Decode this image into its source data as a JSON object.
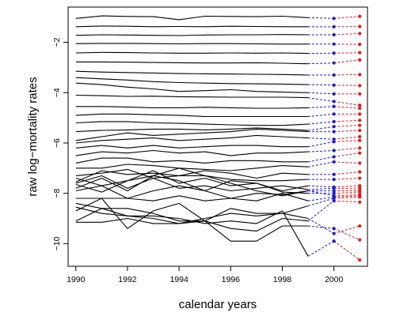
{
  "chart_data": {
    "type": "line",
    "title": "",
    "xlabel": "calendar years",
    "ylabel": "raw log−mortality rates",
    "xlim": [
      1989.7,
      2001.3
    ],
    "ylim": [
      -10.9,
      -0.6
    ],
    "xticks": [
      1990,
      1992,
      1994,
      1996,
      1998,
      2000
    ],
    "xtick_labels": [
      "1990",
      "1992",
      "1994",
      "1996",
      "1998",
      "2000"
    ],
    "yticks": [
      -2,
      -4,
      -6,
      -8,
      -10
    ],
    "ytick_labels": [
      "−2",
      "−4",
      "−6",
      "−8",
      "−10"
    ],
    "grid": false,
    "legend": "none",
    "colors": {
      "observed": "#000000",
      "forecast_2000": "#1f1fd6",
      "forecast_2001": "#e01b1b"
    },
    "x": [
      1990,
      1991,
      1992,
      1993,
      1994,
      1995,
      1996,
      1997,
      1998,
      1999
    ],
    "forecast_x": [
      2000,
      2001
    ],
    "series": [
      {
        "values": [
          -1.05,
          -0.95,
          -0.97,
          -0.98,
          -1.1,
          -0.96,
          -0.97,
          -0.98,
          -0.96,
          -1.02
        ],
        "forecast": [
          -1.05,
          -0.97
        ]
      },
      {
        "values": [
          -1.38,
          -1.35,
          -1.36,
          -1.38,
          -1.37,
          -1.38,
          -1.36,
          -1.37,
          -1.38,
          -1.38
        ],
        "forecast": [
          -1.38,
          -1.37
        ]
      },
      {
        "values": [
          -1.72,
          -1.7,
          -1.71,
          -1.72,
          -1.73,
          -1.71,
          -1.7,
          -1.7,
          -1.69,
          -1.7
        ],
        "forecast": [
          -1.7,
          -1.65
        ]
      },
      {
        "values": [
          -2.05,
          -2.04,
          -2.04,
          -2.05,
          -2.06,
          -2.05,
          -2.05,
          -2.06,
          -2.07,
          -2.07
        ],
        "forecast": [
          -2.07,
          -2.08
        ]
      },
      {
        "values": [
          -2.42,
          -2.4,
          -2.41,
          -2.42,
          -2.43,
          -2.43,
          -2.42,
          -2.43,
          -2.42,
          -2.44
        ],
        "forecast": [
          -2.43,
          -2.41
        ]
      },
      {
        "values": [
          -2.78,
          -2.78,
          -2.79,
          -2.8,
          -2.81,
          -2.82,
          -2.82,
          -2.81,
          -2.83,
          -2.85
        ],
        "forecast": [
          -2.82,
          -2.7
        ]
      },
      {
        "values": [
          -3.15,
          -3.18,
          -3.2,
          -3.22,
          -3.24,
          -3.25,
          -3.26,
          -3.27,
          -3.28,
          -3.3
        ],
        "forecast": [
          -3.3,
          -3.28
        ]
      },
      {
        "values": [
          -3.4,
          -3.45,
          -3.5,
          -3.56,
          -3.6,
          -3.62,
          -3.64,
          -3.65,
          -3.66,
          -3.68
        ],
        "forecast": [
          -3.7,
          -3.72
        ]
      },
      {
        "values": [
          -3.62,
          -3.68,
          -3.78,
          -3.85,
          -3.95,
          -3.92,
          -3.88,
          -3.95,
          -3.98,
          -4.0
        ],
        "forecast": [
          -4.05,
          -4.05
        ]
      },
      {
        "values": [
          -4.1,
          -4.12,
          -4.15,
          -4.14,
          -4.16,
          -4.17,
          -4.18,
          -4.18,
          -4.18,
          -4.2
        ],
        "forecast": [
          -4.35,
          -4.5
        ]
      },
      {
        "values": [
          -4.55,
          -4.55,
          -4.57,
          -4.6,
          -4.6,
          -4.58,
          -4.6,
          -4.62,
          -4.62,
          -4.6
        ],
        "forecast": [
          -4.55,
          -4.62
        ]
      },
      {
        "values": [
          -4.9,
          -4.85,
          -4.85,
          -4.88,
          -4.9,
          -4.95,
          -4.95,
          -4.95,
          -4.95,
          -4.95
        ],
        "forecast": [
          -4.85,
          -4.85
        ]
      },
      {
        "values": [
          -5.2,
          -5.15,
          -5.15,
          -5.2,
          -5.22,
          -5.25,
          -5.28,
          -5.3,
          -5.3,
          -5.25
        ],
        "forecast": [
          -5.15,
          -5.1
        ]
      },
      {
        "values": [
          -5.55,
          -5.5,
          -5.48,
          -5.45,
          -5.45,
          -5.48,
          -5.45,
          -5.4,
          -5.45,
          -5.5
        ],
        "forecast": [
          -5.35,
          -5.3
        ]
      },
      {
        "values": [
          -5.9,
          -5.75,
          -5.6,
          -5.7,
          -5.65,
          -5.6,
          -5.55,
          -5.45,
          -5.5,
          -5.55
        ],
        "forecast": [
          -5.55,
          -5.5
        ]
      },
      {
        "values": [
          -6.0,
          -5.9,
          -5.85,
          -5.8,
          -5.9,
          -5.85,
          -5.8,
          -5.7,
          -5.75,
          -5.8
        ],
        "forecast": [
          -5.85,
          -5.75
        ]
      },
      {
        "values": [
          -6.2,
          -6.1,
          -6.2,
          -6.1,
          -6.2,
          -6.15,
          -6.1,
          -6.1,
          -6.15,
          -6.15
        ],
        "forecast": [
          -5.95,
          -5.9
        ]
      },
      {
        "values": [
          -6.5,
          -6.35,
          -6.4,
          -6.3,
          -6.4,
          -6.35,
          -6.5,
          -6.4,
          -6.4,
          -6.35
        ],
        "forecast": [
          -6.3,
          -6.2
        ]
      },
      {
        "values": [
          -6.8,
          -6.6,
          -6.6,
          -6.75,
          -6.7,
          -6.8,
          -6.7,
          -6.7,
          -6.75,
          -6.75
        ],
        "forecast": [
          -6.55,
          -6.4
        ]
      },
      {
        "values": [
          -7.0,
          -7.0,
          -6.85,
          -6.9,
          -7.0,
          -7.05,
          -7.1,
          -7.0,
          -6.9,
          -6.95
        ],
        "forecast": [
          -6.75,
          -6.8
        ]
      },
      {
        "values": [
          -7.3,
          -7.2,
          -7.05,
          -7.4,
          -7.3,
          -7.1,
          -7.2,
          -7.4,
          -7.2,
          -7.25
        ],
        "forecast": [
          -7.25,
          -7.15
        ]
      },
      {
        "values": [
          -7.55,
          -7.1,
          -7.25,
          -7.2,
          -7.3,
          -7.3,
          -7.45,
          -7.5,
          -7.5,
          -7.45
        ],
        "forecast": [
          -7.45,
          -7.4
        ]
      },
      {
        "values": [
          -7.4,
          -7.7,
          -7.5,
          -7.1,
          -7.6,
          -7.4,
          -7.7,
          -7.6,
          -7.9,
          -7.7
        ],
        "forecast": [
          -7.75,
          -7.7
        ]
      },
      {
        "values": [
          -7.6,
          -7.3,
          -7.8,
          -7.4,
          -7.8,
          -7.7,
          -7.9,
          -7.8,
          -7.7,
          -7.85
        ],
        "forecast": [
          -7.8,
          -7.8
        ]
      },
      {
        "values": [
          -7.8,
          -7.4,
          -7.9,
          -7.3,
          -7.0,
          -7.3,
          -7.6,
          -7.9,
          -8.1,
          -7.9
        ],
        "forecast": [
          -7.9,
          -7.9
        ]
      },
      {
        "values": [
          -7.65,
          -7.95,
          -7.5,
          -7.3,
          -7.5,
          -7.9,
          -7.5,
          -7.6,
          -7.95,
          -8.0
        ],
        "forecast": [
          -8.0,
          -7.95
        ]
      },
      {
        "values": [
          -7.9,
          -7.7,
          -8.2,
          -7.9,
          -7.7,
          -7.9,
          -8.2,
          -8.0,
          -8.05,
          -7.9
        ],
        "forecast": [
          -8.1,
          -8.05
        ]
      },
      {
        "values": [
          -8.2,
          -8.2,
          -8.2,
          -8.3,
          -8.1,
          -8.3,
          -8.2,
          -8.3,
          -8.0,
          -8.3
        ],
        "forecast": [
          -8.15,
          -8.1
        ]
      },
      {
        "values": [
          -8.7,
          -8.2,
          -9.4,
          -8.7,
          -8.4,
          -9.1,
          -8.6,
          -8.8,
          -8.8,
          -8.5
        ],
        "forecast": [
          -8.2,
          -8.15
        ]
      },
      {
        "values": [
          -9.1,
          -8.6,
          -8.6,
          -8.8,
          -9.1,
          -9.1,
          -9.4,
          -9.5,
          -9.0,
          -9.1
        ],
        "forecast": [
          -8.3,
          -8.35
        ]
      },
      {
        "values": [
          -8.55,
          -8.8,
          -8.9,
          -9.0,
          -9.2,
          -9.0,
          -8.8,
          -8.9,
          -8.8,
          -9.0
        ],
        "forecast": [
          -9.6,
          -9.3
        ]
      },
      {
        "values": [
          -9.15,
          -9.15,
          -9.0,
          -9.2,
          -9.2,
          -9.1,
          -9.9,
          -9.9,
          -9.3,
          -9.3
        ],
        "forecast": [
          -9.4,
          -9.85
        ]
      },
      {
        "values": [
          -8.4,
          -8.6,
          -8.9,
          -8.9,
          -9.0,
          -9.2,
          -9.1,
          -9.2,
          -8.7,
          -10.5
        ],
        "forecast": [
          -9.9,
          -10.65
        ]
      }
    ]
  }
}
